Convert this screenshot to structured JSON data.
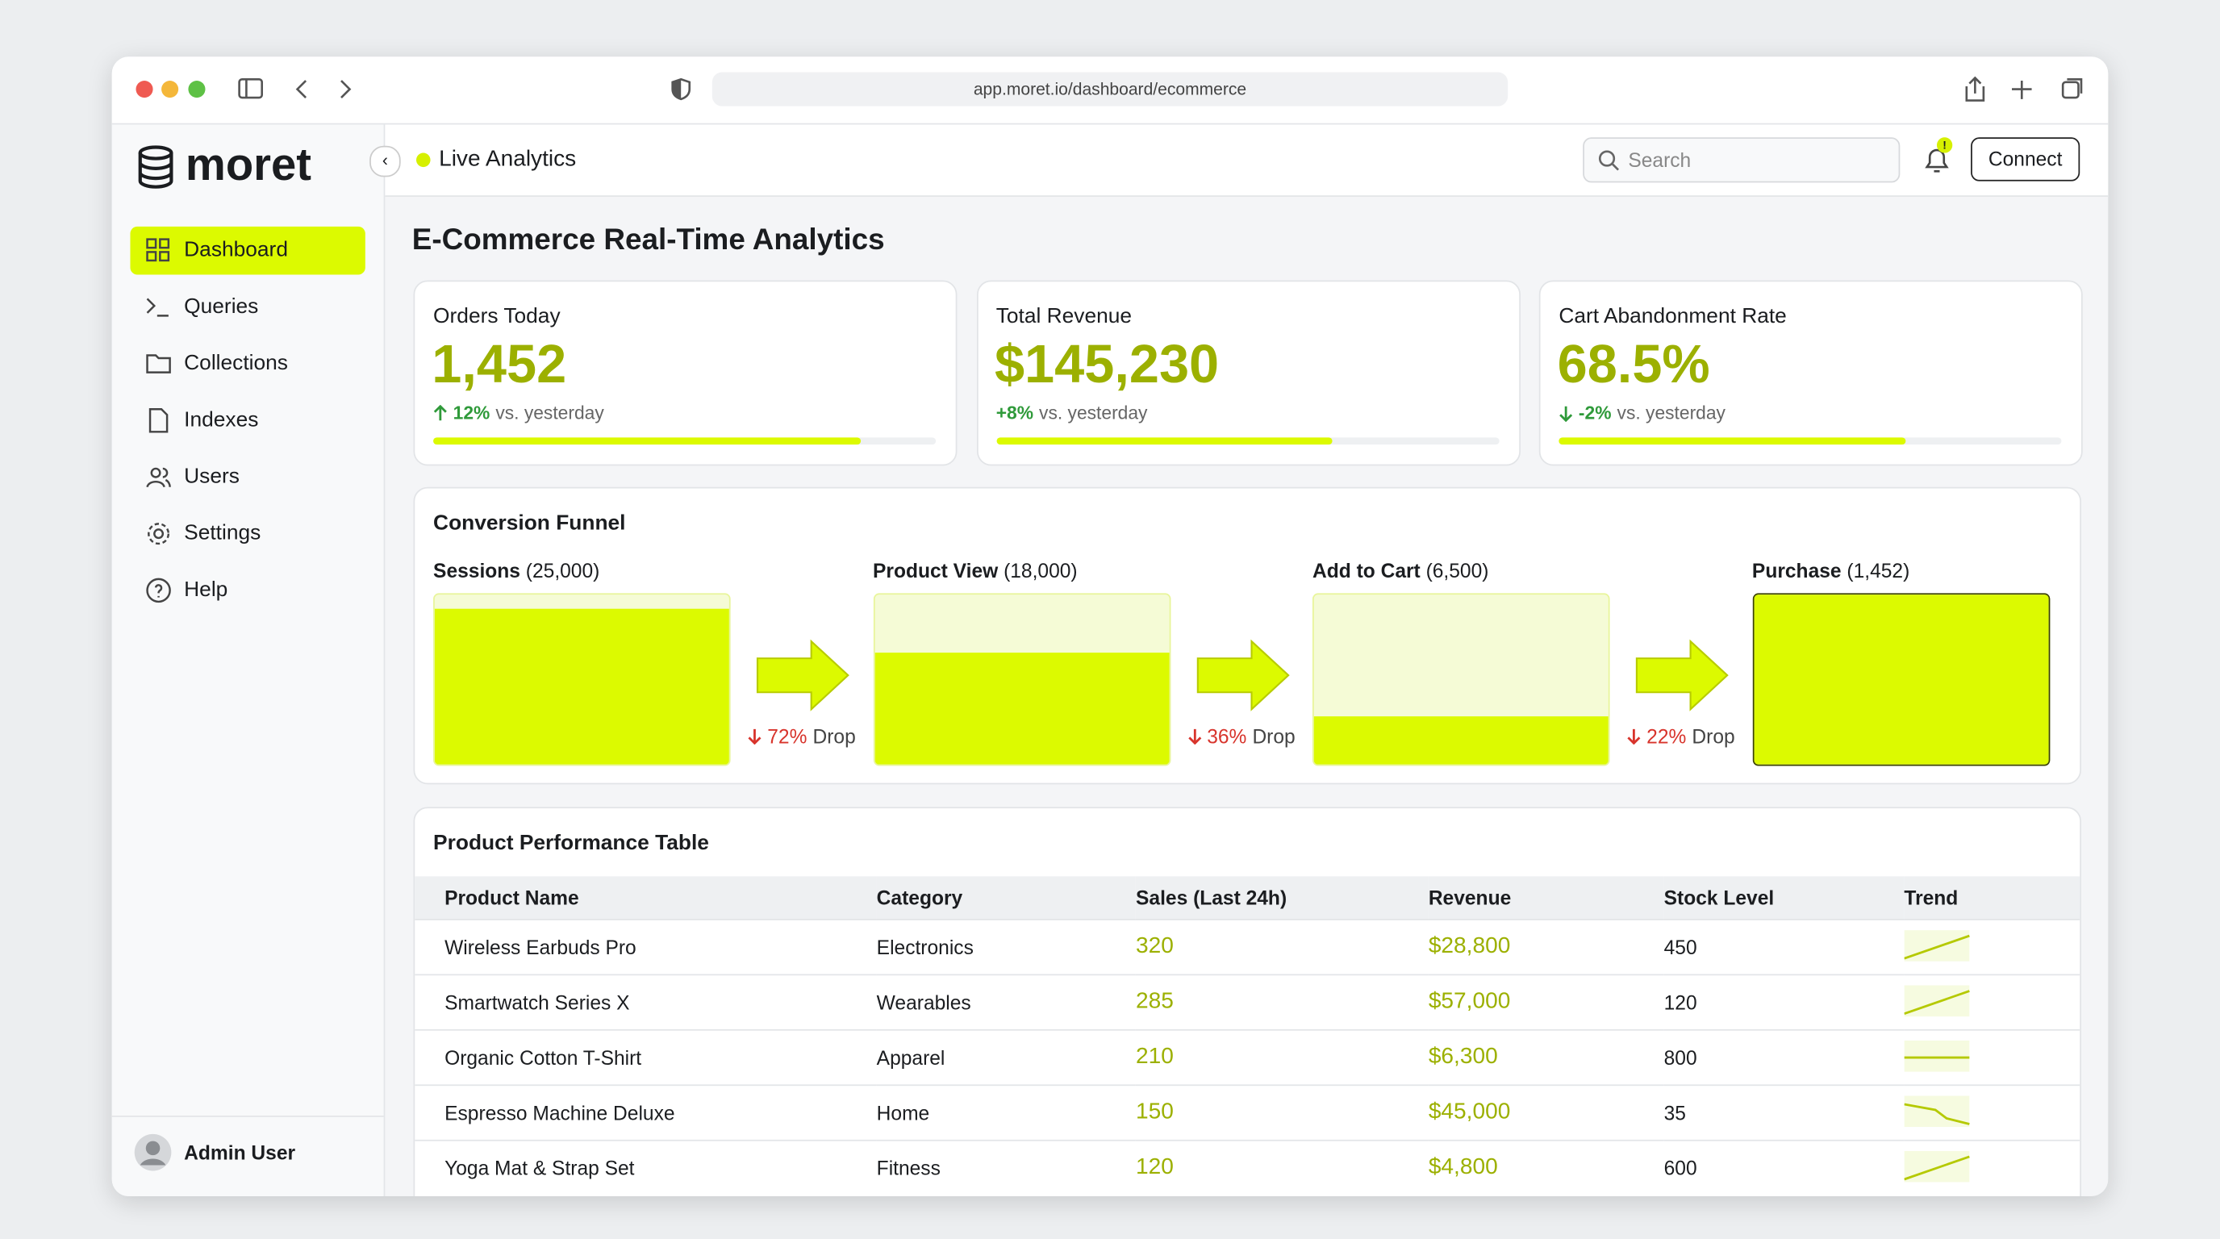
{
  "browser": {
    "url": "app.moret.io/dashboard/ecommerce"
  },
  "sidebar": {
    "brand": "moret",
    "nav": [
      "Dashboard",
      "Queries",
      "Collections",
      "Indexes",
      "Users",
      "Settings",
      "Help"
    ],
    "active": 0,
    "user": "Admin User"
  },
  "header": {
    "status": "Live Analytics",
    "search_placeholder": "Search",
    "notification_badge": "!",
    "connect": "Connect"
  },
  "page_title": "E-Commerce Real-Time Analytics",
  "kpis": [
    {
      "label": "Orders Today",
      "value": "1,452",
      "change": "12%",
      "direction": "up",
      "suffix": "vs. yesterday",
      "progress": 85
    },
    {
      "label": "Total Revenue",
      "value": "$145,230",
      "change": "+8%",
      "direction": "none",
      "suffix": "vs. yesterday",
      "progress": 67
    },
    {
      "label": "Cart Abandonment Rate",
      "value": "68.5%",
      "change": "-2%",
      "direction": "down",
      "suffix": "vs. yesterday",
      "progress": 69
    }
  ],
  "funnel": {
    "title": "Conversion Funnel",
    "stages": [
      {
        "name": "Sessions",
        "count": "(25,000)",
        "fill": 92
      },
      {
        "name": "Product View",
        "count": "(18,000)",
        "fill": 66
      },
      {
        "name": "Add to Cart",
        "count": "(6,500)",
        "fill": 28
      },
      {
        "name": "Purchase",
        "count": "(1,452)",
        "fill": 100
      }
    ],
    "drops": [
      {
        "value": "72%",
        "label": "Drop"
      },
      {
        "value": "36%",
        "label": "Drop"
      },
      {
        "value": "22%",
        "label": "Drop"
      }
    ]
  },
  "table": {
    "title": "Product Performance Table",
    "columns": [
      "Product Name",
      "Category",
      "Sales (Last 24h)",
      "Revenue",
      "Stock Level",
      "Trend"
    ],
    "rows": [
      [
        "Wireless Earbuds Pro",
        "Electronics",
        "320",
        "$28,800",
        "450",
        "up"
      ],
      [
        "Smartwatch Series X",
        "Wearables",
        "285",
        "$57,000",
        "120",
        "up"
      ],
      [
        "Organic Cotton T-Shirt",
        "Apparel",
        "210",
        "$6,300",
        "800",
        "flat"
      ],
      [
        "Espresso Machine Deluxe",
        "Home",
        "150",
        "$45,000",
        "35",
        "down"
      ],
      [
        "Yoga Mat & Strap Set",
        "Fitness",
        "120",
        "$4,800",
        "600",
        "up"
      ]
    ]
  }
}
